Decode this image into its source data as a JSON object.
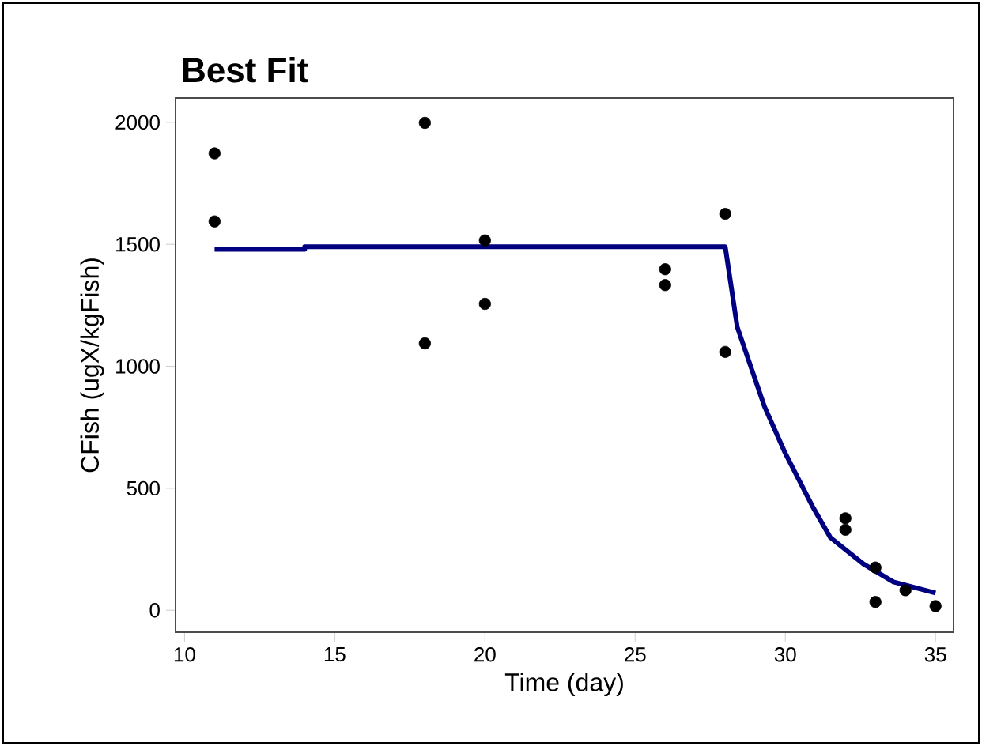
{
  "chart_data": {
    "type": "scatter",
    "title": "Best Fit",
    "xlabel": "Time  (day)",
    "ylabel": "CFish  (ugX/kgFish)",
    "xlim": [
      9.7,
      35.6
    ],
    "ylim": [
      -90,
      2100
    ],
    "xticks": [
      10,
      15,
      20,
      25,
      30,
      35
    ],
    "yticks": [
      0,
      500,
      1000,
      1500,
      2000
    ],
    "grid": false,
    "series": [
      {
        "color": "#000000",
        "marker": "circle",
        "x": [
          11,
          11,
          18,
          18,
          20,
          20,
          26,
          26,
          28,
          28,
          32,
          32,
          33,
          33,
          34,
          35
        ],
        "values": [
          1873,
          1594,
          1998,
          1094,
          1516,
          1256,
          1398,
          1333,
          1625,
          1059,
          377,
          330,
          175,
          34,
          82,
          17
        ]
      },
      {
        "type": "line",
        "color": "#000080",
        "marker": "none",
        "line_style": "solid",
        "x": [
          11,
          14,
          14,
          28,
          28.4,
          29.3,
          30,
          30.9,
          31.5,
          32.6,
          33.6,
          35
        ],
        "values": [
          1480,
          1480,
          1490,
          1490,
          1161,
          837,
          643,
          427,
          298,
          190,
          116,
          71
        ]
      }
    ]
  }
}
